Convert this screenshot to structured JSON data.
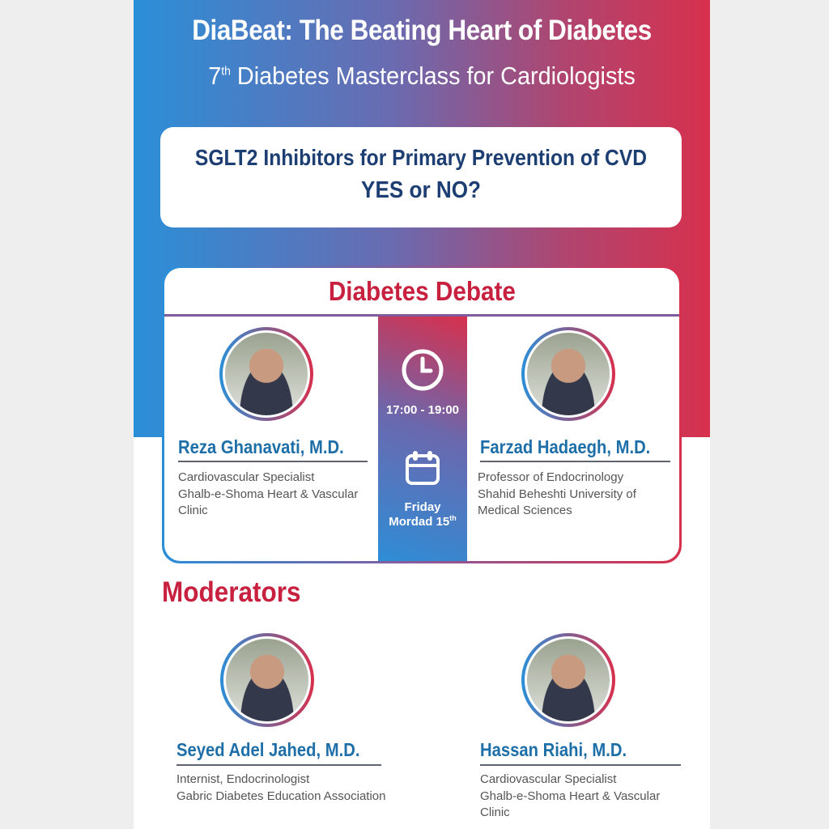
{
  "header": {
    "title": "DiaBeat: The Beating Heart of Diabetes",
    "subtitle_num": "7",
    "subtitle_sup": "th",
    "subtitle_rest": " Diabetes Masterclass for Cardiologists"
  },
  "question": {
    "line1": "SGLT2 Inhibitors for Primary Prevention of CVD",
    "line2": "YES or NO?"
  },
  "debate": {
    "heading": "Diabetes Debate",
    "time": "17:00 - 19:00",
    "day": "Friday",
    "date": "Mordad 15",
    "date_sup": "th",
    "speakers": [
      {
        "name": "Reza Ghanavati, M.D.",
        "role": "Cardiovascular Specialist\nGhalb-e-Shoma Heart & Vascular\nClinic"
      },
      {
        "name": "Farzad Hadaegh, M.D.",
        "role": "Professor of Endocrinology\nShahid Beheshti University of\nMedical Sciences"
      }
    ]
  },
  "moderators": {
    "heading": "Moderators",
    "people": [
      {
        "name": "Seyed Adel Jahed, M.D.",
        "role": "Internist, Endocrinologist\nGabric Diabetes Education Association"
      },
      {
        "name": "Hassan Riahi, M.D.",
        "role": "Cardiovascular Specialist\nGhalb-e-Shoma Heart & Vascular\nClinic"
      }
    ]
  },
  "colors": {
    "blue": "#2b8fd8",
    "red": "#d7304d",
    "navy": "#1d3e72",
    "name_blue": "#1e6fa8"
  }
}
